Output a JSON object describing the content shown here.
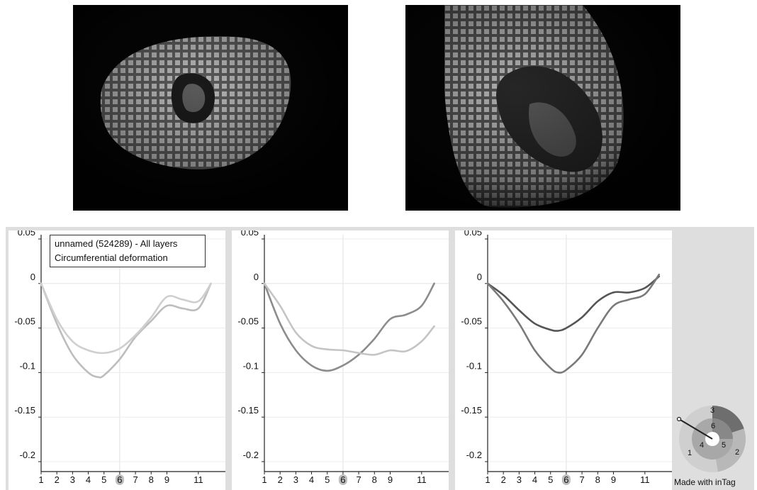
{
  "images": {
    "left": {
      "kind": "tagged cardiac MRI, short-axis view"
    },
    "right": {
      "kind": "tagged cardiac MRI, long-axis view"
    }
  },
  "legend": {
    "line1": "unnamed (524289) - All layers",
    "line2": "Circumferential deformation"
  },
  "segment_selector": {
    "labels": [
      "1",
      "2",
      "3",
      "4",
      "5",
      "6"
    ],
    "highlighted_segment": "3"
  },
  "footer": {
    "credit": "Made with inTag"
  },
  "chart_data": [
    {
      "type": "line",
      "x_ticks": [
        "1",
        "2",
        "3",
        "4",
        "5",
        "6",
        "7",
        "8",
        "9",
        "11"
      ],
      "highlighted_x_tick": "6",
      "y_ticks": [
        "0.05",
        "0",
        "-0.05",
        "-0.1",
        "-0.15",
        "-0.2"
      ],
      "ylim": [
        -0.21,
        0.055
      ],
      "xlim": [
        1,
        12
      ],
      "grid": true,
      "colors": [
        "#bdbdbd",
        "#cfcfcf"
      ],
      "series": [
        {
          "x": [
            1,
            2,
            3,
            4,
            4.6,
            5,
            6,
            7,
            8,
            9,
            10,
            11,
            11.8
          ],
          "values": [
            0,
            -0.045,
            -0.08,
            -0.1,
            -0.105,
            -0.103,
            -0.085,
            -0.06,
            -0.042,
            -0.025,
            -0.028,
            -0.028,
            0
          ]
        },
        {
          "x": [
            1,
            2,
            3,
            4,
            5,
            6,
            7,
            8,
            9,
            10,
            11,
            11.8
          ],
          "values": [
            0,
            -0.04,
            -0.065,
            -0.075,
            -0.078,
            -0.073,
            -0.058,
            -0.038,
            -0.015,
            -0.018,
            -0.02,
            0
          ]
        }
      ]
    },
    {
      "type": "line",
      "x_ticks": [
        "1",
        "2",
        "3",
        "4",
        "5",
        "6",
        "7",
        "8",
        "9",
        "11"
      ],
      "highlighted_x_tick": "6",
      "y_ticks": [
        "0.05",
        "0",
        "-0.05",
        "-0.1",
        "-0.15",
        "-0.2"
      ],
      "ylim": [
        -0.21,
        0.055
      ],
      "xlim": [
        1,
        12
      ],
      "grid": true,
      "colors": [
        "#8c8c8c",
        "#c4c4c4"
      ],
      "series": [
        {
          "x": [
            1,
            2,
            3,
            4,
            5,
            6,
            7,
            8,
            9,
            10,
            11,
            11.8
          ],
          "values": [
            0,
            -0.045,
            -0.075,
            -0.092,
            -0.098,
            -0.092,
            -0.08,
            -0.062,
            -0.04,
            -0.035,
            -0.025,
            0
          ]
        },
        {
          "x": [
            1,
            2,
            3,
            4,
            5,
            6,
            7,
            8,
            9,
            10,
            11,
            11.8
          ],
          "values": [
            0,
            -0.025,
            -0.055,
            -0.07,
            -0.074,
            -0.075,
            -0.078,
            -0.08,
            -0.075,
            -0.076,
            -0.065,
            -0.048
          ]
        }
      ]
    },
    {
      "type": "line",
      "x_ticks": [
        "1",
        "2",
        "3",
        "4",
        "5",
        "6",
        "7",
        "8",
        "9",
        "11"
      ],
      "highlighted_x_tick": "6",
      "y_ticks": [
        "0.05",
        "0",
        "-0.05",
        "-0.1",
        "-0.15",
        "-0.2"
      ],
      "ylim": [
        -0.21,
        0.055
      ],
      "xlim": [
        1,
        12
      ],
      "grid": true,
      "colors": [
        "#555555",
        "#7a7a7a"
      ],
      "series": [
        {
          "x": [
            1,
            2,
            3,
            4,
            5,
            5.5,
            6,
            7,
            8,
            9,
            10,
            11,
            11.9
          ],
          "values": [
            0,
            -0.013,
            -0.03,
            -0.045,
            -0.052,
            -0.053,
            -0.05,
            -0.038,
            -0.02,
            -0.01,
            -0.01,
            -0.005,
            0.008
          ]
        },
        {
          "x": [
            1,
            2,
            3,
            4,
            5,
            5.5,
            6,
            7,
            8,
            9,
            10,
            11,
            11.9
          ],
          "values": [
            0,
            -0.02,
            -0.045,
            -0.075,
            -0.095,
            -0.1,
            -0.097,
            -0.08,
            -0.05,
            -0.025,
            -0.018,
            -0.012,
            0.01
          ]
        }
      ]
    }
  ]
}
